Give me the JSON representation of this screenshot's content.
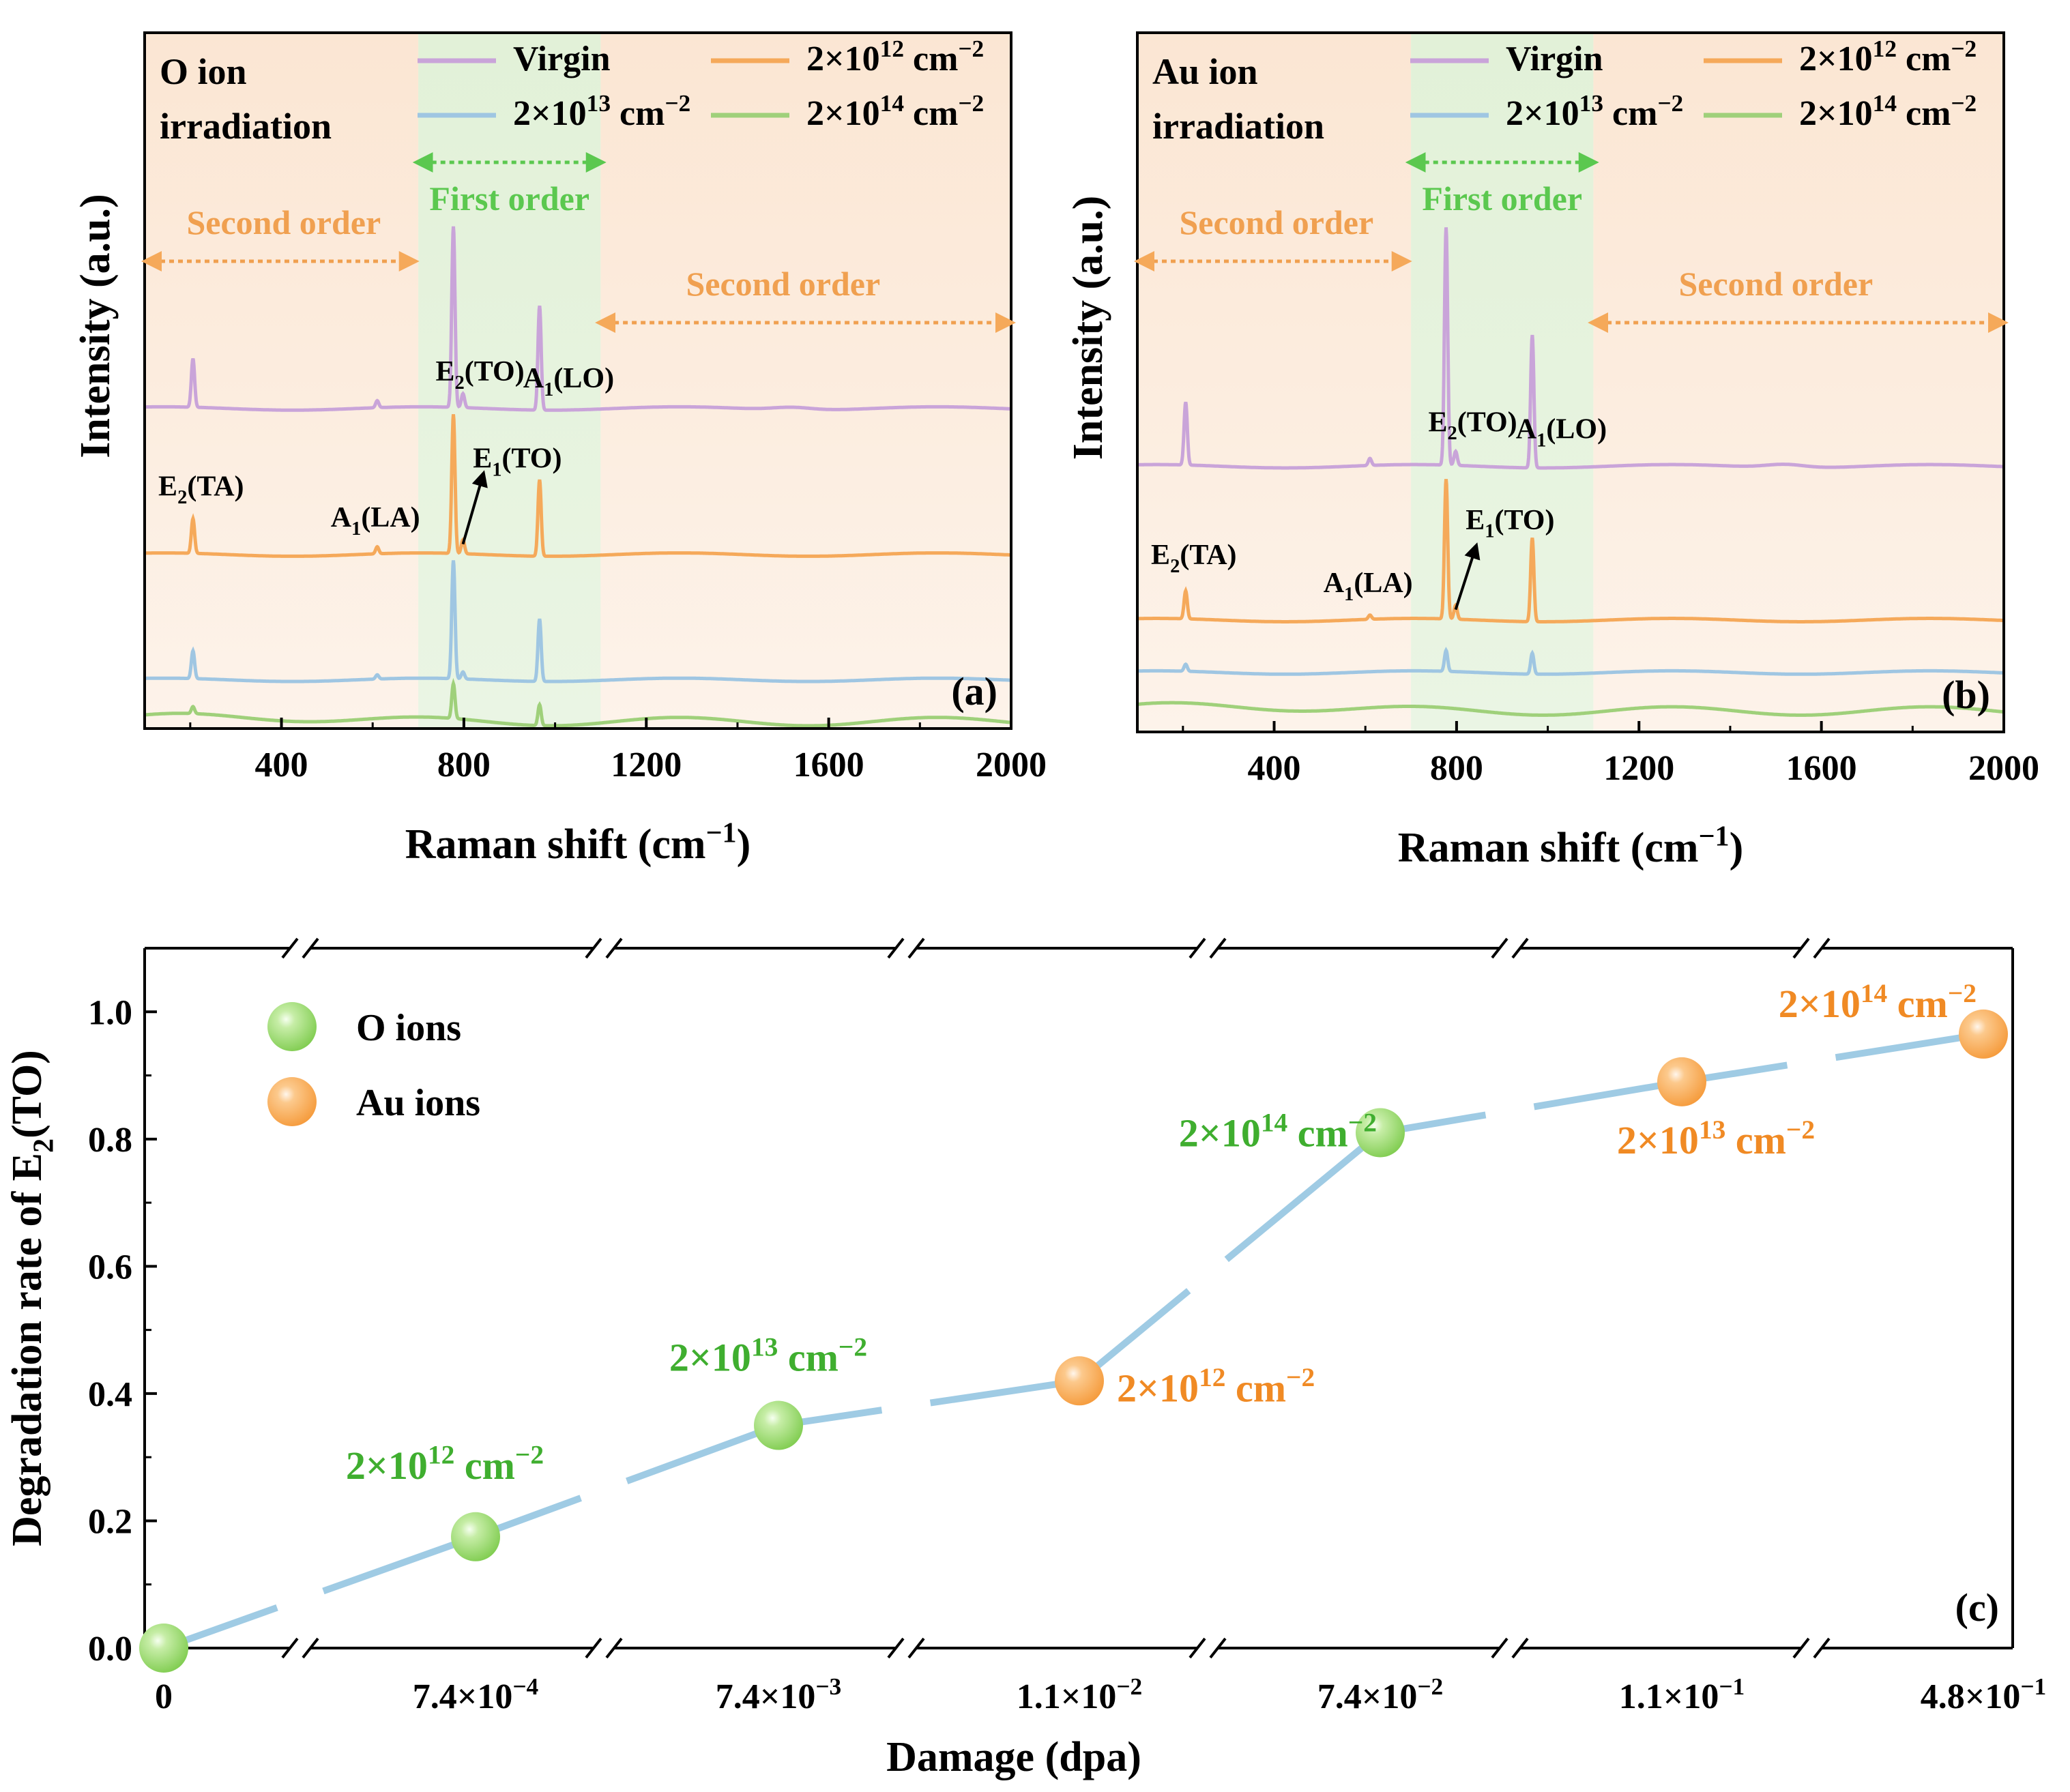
{
  "colors": {
    "virgin": "#c9a4d9",
    "f12": "#f5a95a",
    "f13": "#9fc6e2",
    "f14": "#9fd07a",
    "second_order_label": "#f0a050",
    "first_order_label": "#5bc84f",
    "green_text": "#3fae2f",
    "orange_text": "#f08a24",
    "line_c": "#9fcbe4",
    "bg_second": "#fbe8d6",
    "bg_first": "#e4f1dc"
  },
  "chart_data": [
    {
      "id": "a",
      "type": "line",
      "panel_label": "(a)",
      "title_lines": [
        "O ion",
        "irradiation"
      ],
      "xlabel": "Raman shift (cm",
      "xlabel_sup": "−1",
      "xlabel_end": ")",
      "ylabel": "Intensity (a.u.)",
      "xlim": [
        100,
        2000
      ],
      "xticks": [
        "400",
        "800",
        "1200",
        "1600",
        "2000"
      ],
      "first_order_range": [
        700,
        1100
      ],
      "legend": [
        {
          "key": "virgin",
          "label": "Virgin"
        },
        {
          "key": "f12",
          "label": "2×10",
          "sup": "12",
          "unit": " cm",
          "unit_sup": "−2"
        },
        {
          "key": "f13",
          "label": "2×10",
          "sup": "13",
          "unit": " cm",
          "unit_sup": "−2"
        },
        {
          "key": "f14",
          "label": "2×10",
          "sup": "14",
          "unit": " cm",
          "unit_sup": "−2"
        }
      ],
      "region_labels": {
        "second_left": "Second order",
        "first": "First order",
        "second_right": "Second order"
      },
      "series": [
        {
          "name": "Virgin",
          "key": "virgin",
          "baseline": 0.46,
          "peaks": [
            {
              "x": 206,
              "h": 0.07
            },
            {
              "x": 610,
              "h": 0.01
            },
            {
              "x": 777,
              "h": 0.26
            },
            {
              "x": 798,
              "h": 0.02
            },
            {
              "x": 966,
              "h": 0.15
            },
            {
              "x": 1520,
              "h": 0.004
            }
          ]
        },
        {
          "name": "2×10^12 cm^-2",
          "key": "f12",
          "baseline": 0.25,
          "peaks": [
            {
              "x": 206,
              "h": 0.05
            },
            {
              "x": 610,
              "h": 0.01
            },
            {
              "x": 777,
              "h": 0.2
            },
            {
              "x": 798,
              "h": 0.02
            },
            {
              "x": 966,
              "h": 0.11
            }
          ]
        },
        {
          "name": "2×10^13 cm^-2",
          "key": "f13",
          "baseline": 0.07,
          "peaks": [
            {
              "x": 206,
              "h": 0.04
            },
            {
              "x": 610,
              "h": 0.006
            },
            {
              "x": 777,
              "h": 0.17
            },
            {
              "x": 798,
              "h": 0.01
            },
            {
              "x": 966,
              "h": 0.09
            }
          ]
        },
        {
          "name": "2×10^14 cm^-2",
          "key": "f14",
          "baseline": 0.01,
          "peaks": [
            {
              "x": 206,
              "h": 0.01
            },
            {
              "x": 777,
              "h": 0.05
            },
            {
              "x": 966,
              "h": 0.03
            }
          ]
        }
      ],
      "annotations": [
        {
          "text": "E",
          "sub": "2",
          "rest": "(TO)",
          "x": 738,
          "y": 0.5
        },
        {
          "text": "A",
          "sub": "1",
          "rest": "(LO)",
          "x": 930,
          "y": 0.49
        },
        {
          "text": "E",
          "sub": "1",
          "rest": "(TO)",
          "x": 820,
          "y": 0.375
        },
        {
          "text": "E",
          "sub": "2",
          "rest": "(TA)",
          "x": 130,
          "y": 0.335
        },
        {
          "text": "A",
          "sub": "1",
          "rest": "(LA)",
          "x": 508,
          "y": 0.29
        }
      ],
      "arrow": {
        "from_x": 798,
        "from_y": 0.265,
        "to_x": 840,
        "to_y": 0.36
      }
    },
    {
      "id": "b",
      "type": "line",
      "panel_label": "(b)",
      "title_lines": [
        "Au ion",
        "irradiation"
      ],
      "xlabel": "Raman shift (cm",
      "xlabel_sup": "−1",
      "xlabel_end": ")",
      "ylabel": "Intensity (a.u.)",
      "xlim": [
        100,
        2000
      ],
      "xticks": [
        "400",
        "800",
        "1200",
        "1600",
        "2000"
      ],
      "first_order_range": [
        700,
        1100
      ],
      "legend": [
        {
          "key": "virgin",
          "label": "Virgin"
        },
        {
          "key": "f12",
          "label": "2×10",
          "sup": "12",
          "unit": " cm",
          "unit_sup": "−2"
        },
        {
          "key": "f13",
          "label": "2×10",
          "sup": "13",
          "unit": " cm",
          "unit_sup": "−2"
        },
        {
          "key": "f14",
          "label": "2×10",
          "sup": "14",
          "unit": " cm",
          "unit_sup": "−2"
        }
      ],
      "region_labels": {
        "second_left": "Second order",
        "first": "First order",
        "second_right": "Second order"
      },
      "series": [
        {
          "name": "Virgin",
          "key": "virgin",
          "baseline": 0.38,
          "peaks": [
            {
              "x": 206,
              "h": 0.09
            },
            {
              "x": 610,
              "h": 0.01
            },
            {
              "x": 777,
              "h": 0.34
            },
            {
              "x": 798,
              "h": 0.02
            },
            {
              "x": 966,
              "h": 0.19
            },
            {
              "x": 1520,
              "h": 0.005
            }
          ]
        },
        {
          "name": "2×10^12 cm^-2",
          "key": "f12",
          "baseline": 0.16,
          "peaks": [
            {
              "x": 206,
              "h": 0.04
            },
            {
              "x": 610,
              "h": 0.006
            },
            {
              "x": 777,
              "h": 0.2
            },
            {
              "x": 798,
              "h": 0.02
            },
            {
              "x": 966,
              "h": 0.12
            }
          ]
        },
        {
          "name": "2×10^13 cm^-2",
          "key": "f13",
          "baseline": 0.085,
          "peaks": [
            {
              "x": 206,
              "h": 0.01
            },
            {
              "x": 777,
              "h": 0.03
            },
            {
              "x": 966,
              "h": 0.03
            }
          ]
        },
        {
          "name": "2×10^14 cm^-2",
          "key": "f14",
          "baseline": 0.03,
          "peaks": []
        }
      ],
      "annotations": [
        {
          "text": "E",
          "sub": "2",
          "rest": "(TO)",
          "x": 738,
          "y": 0.43
        },
        {
          "text": "A",
          "sub": "1",
          "rest": "(LO)",
          "x": 930,
          "y": 0.42
        },
        {
          "text": "E",
          "sub": "1",
          "rest": "(TO)",
          "x": 820,
          "y": 0.29
        },
        {
          "text": "E",
          "sub": "2",
          "rest": "(TA)",
          "x": 130,
          "y": 0.24
        },
        {
          "text": "A",
          "sub": "1",
          "rest": "(LA)",
          "x": 508,
          "y": 0.2
        }
      ],
      "arrow": {
        "from_x": 798,
        "from_y": 0.175,
        "to_x": 840,
        "to_y": 0.26
      }
    },
    {
      "id": "c",
      "type": "line",
      "panel_label": "(c)",
      "xlabel": "Damage (dpa)",
      "ylabel_pre": "Degradation rate of E",
      "ylabel_sub": "2",
      "ylabel_post": "(TO)",
      "ylim": [
        0,
        1.1
      ],
      "yticks": [
        "0.0",
        "0.2",
        "0.4",
        "0.6",
        "0.8",
        "1.0"
      ],
      "x_categories": [
        {
          "base": "0",
          "exp": ""
        },
        {
          "base": "7.4×10",
          "exp": "−4"
        },
        {
          "base": "7.4×10",
          "exp": "−3"
        },
        {
          "base": "1.1×10",
          "exp": "−2"
        },
        {
          "base": "7.4×10",
          "exp": "−2"
        },
        {
          "base": "1.1×10",
          "exp": "−1"
        },
        {
          "base": "4.8×10",
          "exp": "−1"
        }
      ],
      "legend": [
        {
          "ion": "O",
          "label": "O ions"
        },
        {
          "ion": "Au",
          "label": "Au ions"
        }
      ],
      "points": [
        {
          "cat": 0,
          "y": 0.0,
          "ion": "O",
          "label": "",
          "sup": ""
        },
        {
          "cat": 1,
          "y": 0.175,
          "ion": "O",
          "label": "2×10",
          "sup": "12"
        },
        {
          "cat": 2,
          "y": 0.35,
          "ion": "O",
          "label": "2×10",
          "sup": "13"
        },
        {
          "cat": 3,
          "y": 0.42,
          "ion": "Au",
          "label": "2×10",
          "sup": "12"
        },
        {
          "cat": 4,
          "y": 0.81,
          "ion": "O",
          "label": "2×10",
          "sup": "14"
        },
        {
          "cat": 5,
          "y": 0.89,
          "ion": "Au",
          "label": "2×10",
          "sup": "13"
        },
        {
          "cat": 6,
          "y": 0.965,
          "ion": "Au",
          "label": "2×10",
          "sup": "14"
        }
      ],
      "unit_text": " cm",
      "unit_sup": "−2"
    }
  ]
}
